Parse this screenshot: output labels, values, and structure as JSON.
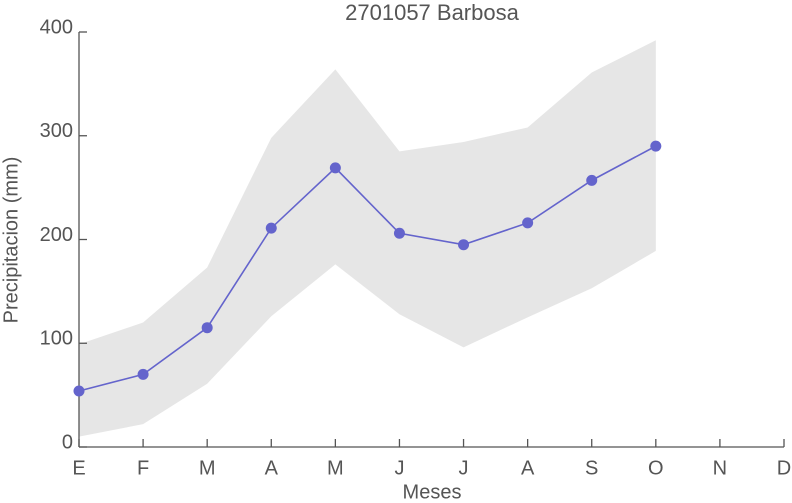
{
  "chart_data": {
    "type": "line",
    "title": "2701057 Barbosa",
    "x_label": "Meses",
    "y_label": "Precipitacion (mm)",
    "categories": [
      "E",
      "F",
      "M",
      "A",
      "M",
      "J",
      "J",
      "A",
      "S",
      "O",
      "N",
      "D"
    ],
    "series": [
      {
        "name": "Precipitacion",
        "color": "#6464cc",
        "values": [
          54,
          70,
          115,
          211,
          269,
          206,
          195,
          216,
          257,
          290,
          null,
          null
        ]
      }
    ],
    "band": {
      "color": "#e6e6e6",
      "upper": [
        99,
        120,
        173,
        298,
        364,
        285,
        294,
        308,
        361,
        392,
        null,
        null
      ],
      "lower": [
        10,
        22,
        61,
        126,
        176,
        128,
        96,
        125,
        153,
        189,
        null,
        null
      ]
    },
    "ylim": [
      0,
      400
    ],
    "yticks": [
      0,
      100,
      200,
      300,
      400
    ]
  }
}
